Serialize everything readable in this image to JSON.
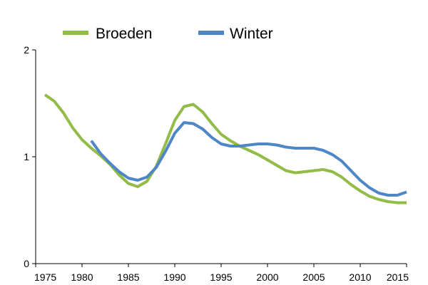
{
  "chart_data": {
    "type": "line",
    "title": "",
    "xlabel": "",
    "ylabel": "",
    "xlim": [
      1975,
      2015
    ],
    "ylim": [
      0,
      2
    ],
    "x_ticks": [
      "1975",
      "1980",
      "1985",
      "1990",
      "1995",
      "2000",
      "2005",
      "2010",
      "2015"
    ],
    "y_ticks": [
      "0",
      "1",
      "2"
    ],
    "grid": false,
    "legend_position": "top",
    "series": [
      {
        "name": "Broeden",
        "color": "#92bb48",
        "x": [
          1976,
          1977,
          1978,
          1979,
          1980,
          1981,
          1982,
          1983,
          1984,
          1985,
          1986,
          1987,
          1988,
          1989,
          1990,
          1991,
          1992,
          1993,
          1994,
          1995,
          1996,
          1997,
          1998,
          1999,
          2000,
          2001,
          2002,
          2003,
          2004,
          2005,
          2006,
          2007,
          2008,
          2009,
          2010,
          2011,
          2012,
          2013,
          2014,
          2015
        ],
        "y": [
          1.58,
          1.52,
          1.41,
          1.27,
          1.16,
          1.08,
          1.01,
          0.93,
          0.83,
          0.75,
          0.72,
          0.77,
          0.91,
          1.12,
          1.34,
          1.47,
          1.49,
          1.42,
          1.31,
          1.21,
          1.15,
          1.1,
          1.06,
          1.02,
          0.97,
          0.92,
          0.87,
          0.85,
          0.86,
          0.87,
          0.88,
          0.86,
          0.81,
          0.74,
          0.68,
          0.63,
          0.6,
          0.58,
          0.57,
          0.57
        ]
      },
      {
        "name": "Winter",
        "color": "#4f86c6",
        "x": [
          1981,
          1982,
          1983,
          1984,
          1985,
          1986,
          1987,
          1988,
          1989,
          1990,
          1991,
          1992,
          1993,
          1994,
          1995,
          1996,
          1997,
          1998,
          1999,
          2000,
          2001,
          2002,
          2003,
          2004,
          2005,
          2006,
          2007,
          2008,
          2009,
          2010,
          2011,
          2012,
          2013,
          2014,
          2015
        ],
        "y": [
          1.15,
          1.03,
          0.94,
          0.86,
          0.8,
          0.78,
          0.81,
          0.9,
          1.05,
          1.22,
          1.32,
          1.31,
          1.26,
          1.18,
          1.12,
          1.1,
          1.1,
          1.11,
          1.12,
          1.12,
          1.11,
          1.09,
          1.08,
          1.08,
          1.08,
          1.06,
          1.02,
          0.96,
          0.87,
          0.78,
          0.71,
          0.66,
          0.64,
          0.64,
          0.67
        ]
      }
    ]
  }
}
